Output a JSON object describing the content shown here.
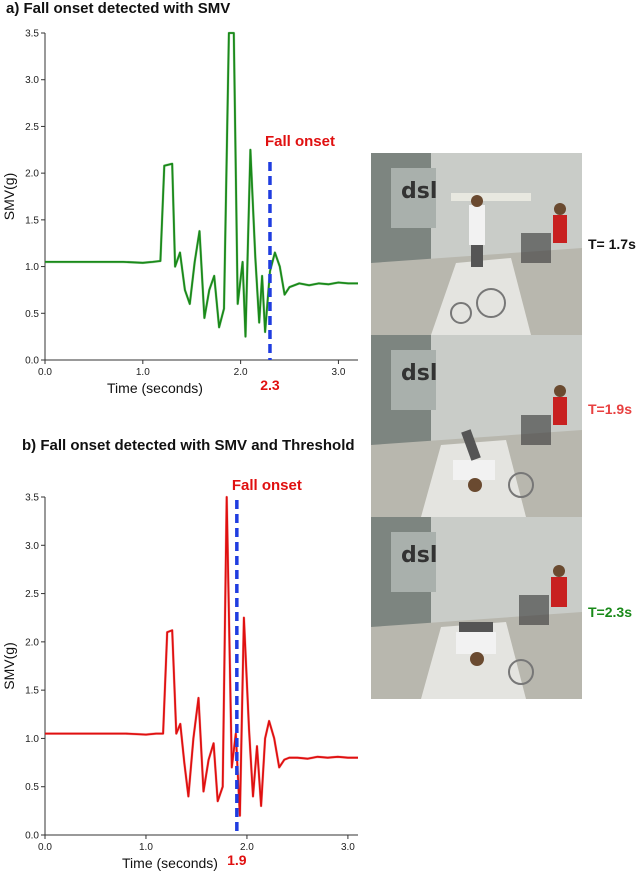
{
  "chart_data": [
    {
      "type": "line",
      "title": "a) Fall onset detected with SMV",
      "xlabel": "Time (seconds)",
      "ylabel": "SMV(g)",
      "xlim": [
        0.0,
        3.2
      ],
      "ylim": [
        0.0,
        3.5
      ],
      "xticks": [
        "0.0",
        "1.0",
        "2.0",
        "3.0"
      ],
      "yticks": [
        "0.0",
        "0.5",
        "1.0",
        "1.5",
        "2.0",
        "2.5",
        "3.0",
        "3.5"
      ],
      "series_color": "#1a8a1a",
      "series": [
        {
          "x": [
            0.0,
            0.5,
            0.8,
            1.0,
            1.1,
            1.18,
            1.22,
            1.3,
            1.33,
            1.38,
            1.43,
            1.48,
            1.53,
            1.58,
            1.63,
            1.68,
            1.73,
            1.78,
            1.83,
            1.88,
            1.93,
            1.97,
            2.02,
            2.05,
            2.1,
            2.15,
            2.19,
            2.22,
            2.25,
            2.3,
            2.35,
            2.4,
            2.45,
            2.5,
            2.6,
            2.7,
            2.8,
            2.9,
            3.0,
            3.1,
            3.2
          ],
          "y": [
            1.05,
            1.05,
            1.05,
            1.04,
            1.05,
            1.06,
            2.08,
            2.1,
            1.0,
            1.15,
            0.75,
            0.6,
            1.05,
            1.38,
            0.45,
            0.75,
            0.9,
            0.35,
            0.55,
            3.5,
            3.5,
            0.6,
            1.05,
            0.25,
            2.25,
            1.1,
            0.4,
            0.9,
            0.3,
            0.95,
            1.15,
            1.0,
            0.7,
            0.78,
            0.82,
            0.8,
            0.82,
            0.81,
            0.83,
            0.82,
            0.82
          ]
        }
      ],
      "onset_x": 2.3,
      "onset_label": "2.3",
      "annotation": "Fall onset"
    },
    {
      "type": "line",
      "title": "b) Fall onset detected with SMV and Threshold",
      "xlabel": "Time (seconds)",
      "ylabel": "SMV(g)",
      "xlim": [
        0.0,
        3.1
      ],
      "ylim": [
        0.0,
        3.5
      ],
      "xticks": [
        "0.0",
        "1.0",
        "2.0",
        "3.0"
      ],
      "yticks": [
        "0.0",
        "0.5",
        "1.0",
        "1.5",
        "2.0",
        "2.5",
        "3.0",
        "3.5"
      ],
      "series_color": "#e01010",
      "series": [
        {
          "x": [
            0.0,
            0.5,
            0.8,
            1.0,
            1.1,
            1.17,
            1.21,
            1.26,
            1.3,
            1.34,
            1.38,
            1.42,
            1.47,
            1.52,
            1.57,
            1.62,
            1.67,
            1.71,
            1.76,
            1.8,
            1.85,
            1.89,
            1.93,
            1.97,
            2.02,
            2.06,
            2.1,
            2.14,
            2.18,
            2.22,
            2.27,
            2.32,
            2.37,
            2.42,
            2.5,
            2.6,
            2.7,
            2.8,
            2.9,
            3.0,
            3.1
          ],
          "y": [
            1.05,
            1.05,
            1.05,
            1.04,
            1.05,
            1.05,
            2.1,
            2.12,
            1.05,
            1.15,
            0.75,
            0.4,
            1.0,
            1.42,
            0.45,
            0.78,
            0.95,
            0.35,
            0.5,
            3.5,
            0.7,
            1.05,
            0.2,
            2.25,
            1.1,
            0.4,
            0.92,
            0.3,
            1.0,
            1.18,
            1.0,
            0.7,
            0.78,
            0.8,
            0.8,
            0.79,
            0.81,
            0.8,
            0.81,
            0.8,
            0.8
          ]
        }
      ],
      "onset_x": 1.9,
      "onset_label": "1.9",
      "annotation": "Fall onset"
    }
  ],
  "frames": [
    {
      "label": "T= 1.7s",
      "color": "#111111"
    },
    {
      "label": "T=1.9s",
      "color": "#e84040"
    },
    {
      "label": "T=2.3s",
      "color": "#1a8a1a"
    }
  ],
  "colors": {
    "onset_line": "#1f3de0",
    "annotation": "#e01010"
  }
}
